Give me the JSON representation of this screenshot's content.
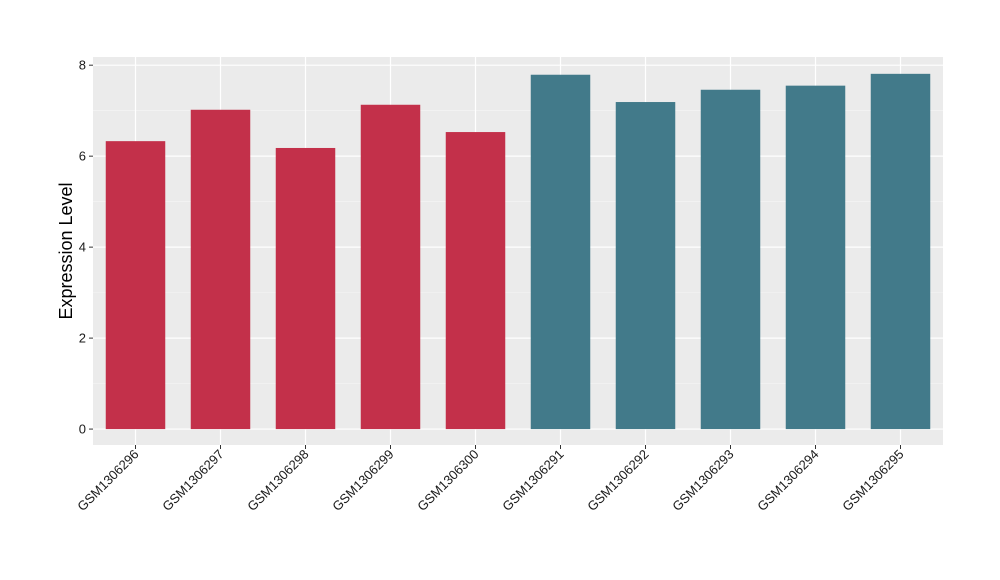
{
  "chart_data": {
    "type": "bar",
    "title": "",
    "xlabel": "",
    "ylabel": "Expression Level",
    "categories": [
      "GSM1306296",
      "GSM1306297",
      "GSM1306298",
      "GSM1306299",
      "GSM1306300",
      "GSM1306291",
      "GSM1306292",
      "GSM1306293",
      "GSM1306294",
      "GSM1306295"
    ],
    "values": [
      6.33,
      7.02,
      6.18,
      7.13,
      6.53,
      7.79,
      7.19,
      7.46,
      7.55,
      7.81
    ],
    "bar_colors": [
      "#c3304a",
      "#c3304a",
      "#c3304a",
      "#c3304a",
      "#c3304a",
      "#427a8a",
      "#427a8a",
      "#427a8a",
      "#427a8a",
      "#427a8a"
    ],
    "ylim": [
      -0.35,
      8.18
    ],
    "yticks": [
      0,
      2,
      4,
      6,
      8
    ],
    "grid": true,
    "legend": "none",
    "colors": {
      "panel_background": "#ebebeb",
      "grid_major": "#ffffff",
      "grid_minor": "#f5f5f5"
    }
  }
}
